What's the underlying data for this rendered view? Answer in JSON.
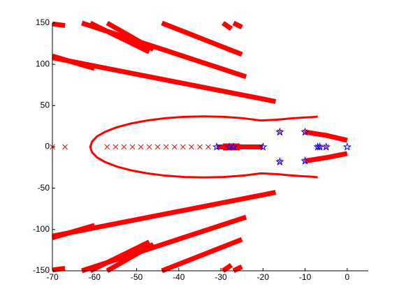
{
  "chart_data": {
    "type": "scatter",
    "xlim": [
      -70,
      5
    ],
    "ylim": [
      -150,
      150
    ],
    "xticks": [
      -70,
      -60,
      -50,
      -40,
      -30,
      -20,
      -10,
      0
    ],
    "yticks": [
      -150,
      -100,
      -50,
      0,
      50,
      100,
      150
    ],
    "series": [
      {
        "color": "#ff0000",
        "marker": "band",
        "width": 7,
        "x": [
          -70,
          -17
        ],
        "values": [
          108,
          55
        ]
      },
      {
        "color": "#ff0000",
        "marker": "band",
        "width": 7,
        "x": [
          -70,
          -60
        ],
        "values": [
          110,
          95
        ]
      },
      {
        "color": "#ff0000",
        "marker": "band",
        "width": 7,
        "x": [
          -63,
          -24
        ],
        "values": [
          150,
          85
        ]
      },
      {
        "color": "#ff0000",
        "marker": "band",
        "width": 7,
        "x": [
          -61,
          -47
        ],
        "values": [
          150,
          115
        ]
      },
      {
        "color": "#ff0000",
        "marker": "band",
        "width": 7,
        "x": [
          -57,
          -46
        ],
        "values": [
          150,
          118
        ]
      },
      {
        "color": "#ff0000",
        "marker": "band",
        "width": 7,
        "x": [
          -44,
          -25
        ],
        "values": [
          150,
          112
        ]
      },
      {
        "color": "#ff0000",
        "marker": "band",
        "width": 7,
        "x": [
          -70,
          -67
        ],
        "values": [
          149,
          147
        ]
      },
      {
        "color": "#ff0000",
        "marker": "band",
        "width": 7,
        "x": [
          -29.5,
          -27.5
        ],
        "values": [
          150,
          143
        ]
      },
      {
        "color": "#ff0000",
        "marker": "band",
        "width": 7,
        "x": [
          -27,
          -25
        ],
        "values": [
          150,
          145
        ]
      },
      {
        "color": "#ff0000",
        "marker": "band",
        "width": 7,
        "x": [
          -70,
          -17
        ],
        "values": [
          -108,
          -55
        ]
      },
      {
        "color": "#ff0000",
        "marker": "band",
        "width": 7,
        "x": [
          -70,
          -60
        ],
        "values": [
          -110,
          -95
        ]
      },
      {
        "color": "#ff0000",
        "marker": "band",
        "width": 7,
        "x": [
          -63,
          -24
        ],
        "values": [
          -150,
          -85
        ]
      },
      {
        "color": "#ff0000",
        "marker": "band",
        "width": 7,
        "x": [
          -61,
          -47
        ],
        "values": [
          -150,
          -115
        ]
      },
      {
        "color": "#ff0000",
        "marker": "band",
        "width": 7,
        "x": [
          -57,
          -46
        ],
        "values": [
          -150,
          -118
        ]
      },
      {
        "color": "#ff0000",
        "marker": "band",
        "width": 7,
        "x": [
          -44,
          -25
        ],
        "values": [
          -150,
          -112
        ]
      },
      {
        "color": "#ff0000",
        "marker": "band",
        "width": 7,
        "x": [
          -70,
          -67
        ],
        "values": [
          -149,
          -147
        ]
      },
      {
        "color": "#ff0000",
        "marker": "band",
        "width": 7,
        "x": [
          -29.5,
          -27.5
        ],
        "values": [
          -150,
          -143
        ]
      },
      {
        "color": "#ff0000",
        "marker": "band",
        "width": 7,
        "x": [
          -27,
          -25
        ],
        "values": [
          -150,
          -145
        ]
      },
      {
        "color": "#ff0000",
        "marker": "band",
        "width": 7,
        "x": [
          -10,
          -5,
          0
        ],
        "values": [
          18,
          14,
          8
        ]
      },
      {
        "color": "#ff0000",
        "marker": "band",
        "width": 7,
        "x": [
          -10,
          -5,
          0
        ],
        "values": [
          -17,
          -13,
          -8
        ]
      },
      {
        "color": "#ff0000",
        "marker": "band",
        "width": 7,
        "x": [
          -31,
          -20
        ],
        "values": [
          0,
          0
        ]
      },
      {
        "color": "#ff0000",
        "marker": "band",
        "width": 10,
        "x": [
          -29.5,
          -25.5
        ],
        "values": [
          0,
          0
        ]
      },
      {
        "color": "#ff0000",
        "marker": "band",
        "width": 3,
        "x": [
          -7,
          -7.4,
          -8.6,
          -10.6,
          -13.3,
          -16.6,
          -20.5,
          -24.8,
          -29.3,
          -34,
          -38.7,
          -43.2,
          -47.5,
          -51.4,
          -54.7,
          -57.4,
          -59.4,
          -60.6,
          -61,
          -60.6,
          -59.4,
          -57.4,
          -54.7,
          -51.4,
          -47.5,
          -43.2,
          -38.7,
          -34,
          -29.3,
          -24.8,
          -20.5,
          -16.6,
          -13.3,
          -10.6,
          -8.6,
          -7.4,
          -7
        ],
        "values": [
          37,
          36.5,
          36,
          35.5,
          34.5,
          33,
          32,
          34.8,
          36.4,
          37,
          36.4,
          34.8,
          32,
          28.3,
          23.8,
          18.5,
          12.7,
          6.4,
          0,
          -6.4,
          -12.7,
          -18.5,
          -23.8,
          -28.3,
          -32,
          -34.8,
          -36.4,
          -37,
          -36.4,
          -34.8,
          -32,
          -33,
          -34.5,
          -35.5,
          -36,
          -36.5,
          -37
        ]
      },
      {
        "color": "#ff0000",
        "marker": "x",
        "x": [
          -70,
          -67,
          -57,
          -55,
          -53,
          -51,
          -49,
          -47,
          -45,
          -43,
          -41,
          -39,
          -37,
          -35,
          -33,
          -16,
          -16,
          -7,
          -6.5,
          -5,
          -10,
          -10
        ],
        "values": [
          0,
          0,
          0,
          0,
          0,
          0,
          0,
          0,
          0,
          0,
          0,
          0,
          0,
          0,
          0,
          18,
          -18,
          0,
          0,
          0,
          18,
          -17
        ]
      },
      {
        "color": "#0000ff",
        "marker": "star",
        "x": [
          -31,
          -28,
          -27,
          -20,
          -16,
          -16,
          -10,
          -10,
          -7,
          -6.5,
          -5,
          0
        ],
        "values": [
          0,
          0,
          0,
          0,
          18,
          -18,
          18,
          -17,
          0,
          0,
          0,
          0
        ]
      }
    ]
  }
}
